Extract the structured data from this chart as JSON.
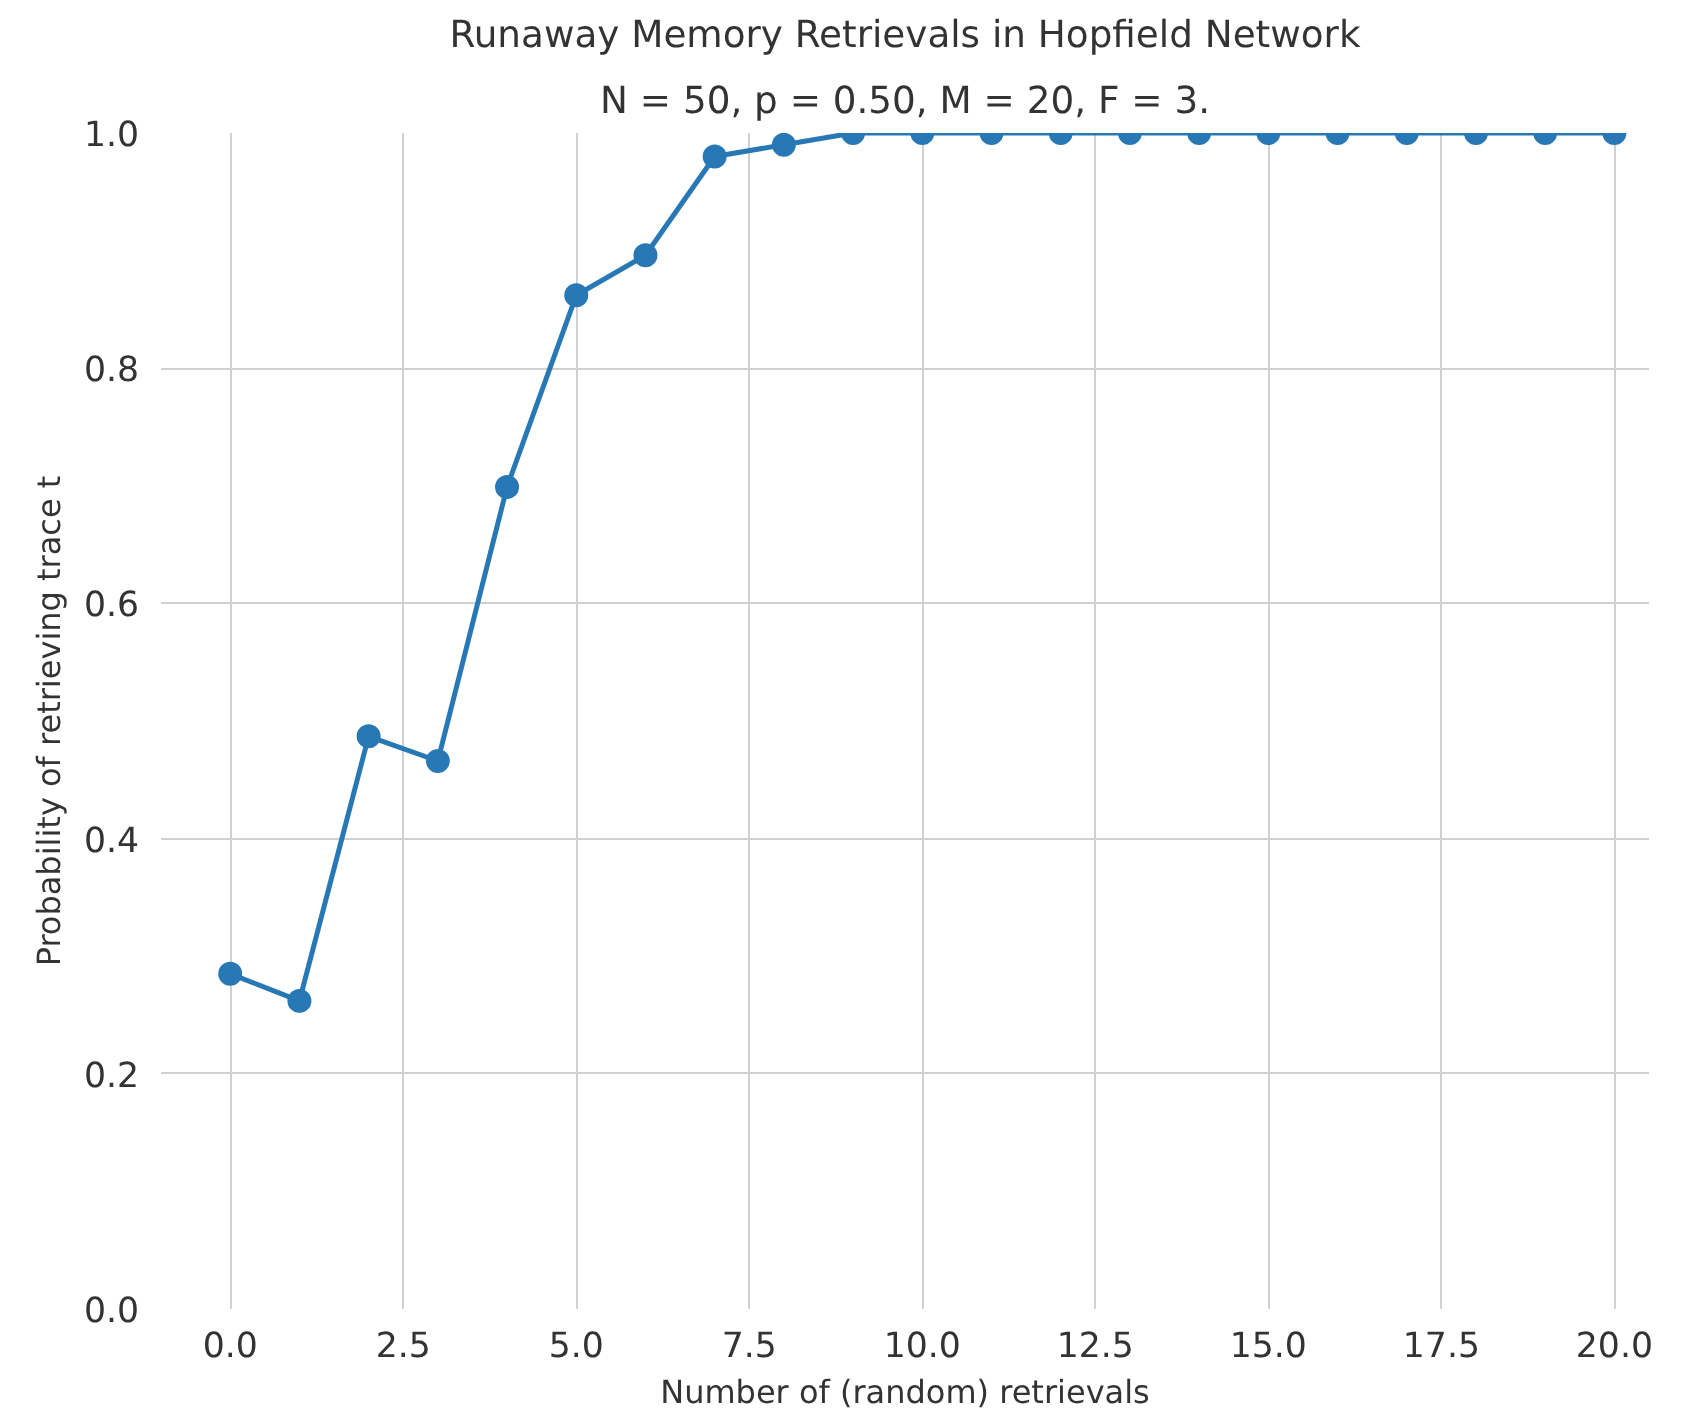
{
  "chart_data": {
    "type": "line",
    "title": "Runaway Memory Retrievals in Hopfield Network",
    "subtitle": "N = 50, p = 0.50, M = 20, F = 3.",
    "xlabel": "Number of (random) retrievals",
    "ylabel": "Probability of retrieving trace t",
    "x": [
      0,
      1,
      2,
      3,
      4,
      5,
      6,
      7,
      8,
      9,
      10,
      11,
      12,
      13,
      14,
      15,
      16,
      17,
      18,
      19,
      20
    ],
    "series": [
      {
        "color": "#2878b5",
        "values": [
          0.285,
          0.262,
          0.487,
          0.466,
          0.699,
          0.862,
          0.896,
          0.98,
          0.99,
          1.0,
          1.0,
          1.0,
          1.0,
          1.0,
          1.0,
          1.0,
          1.0,
          1.0,
          1.0,
          1.0,
          1.0
        ]
      }
    ],
    "xlim": [
      -1,
      20.5
    ],
    "ylim": [
      0,
      1
    ],
    "xticks": [
      {
        "value": 0,
        "label": "0.0"
      },
      {
        "value": 2.5,
        "label": "2.5"
      },
      {
        "value": 5,
        "label": "5.0"
      },
      {
        "value": 7.5,
        "label": "7.5"
      },
      {
        "value": 10,
        "label": "10.0"
      },
      {
        "value": 12.5,
        "label": "12.5"
      },
      {
        "value": 15,
        "label": "15.0"
      },
      {
        "value": 17.5,
        "label": "17.5"
      },
      {
        "value": 20,
        "label": "20.0"
      }
    ],
    "yticks": [
      {
        "value": 0,
        "label": "0.0"
      },
      {
        "value": 0.2,
        "label": "0.2"
      },
      {
        "value": 0.4,
        "label": "0.4"
      },
      {
        "value": 0.6,
        "label": "0.6"
      },
      {
        "value": 0.8,
        "label": "0.8"
      },
      {
        "value": 1,
        "label": "1.0"
      }
    ],
    "grid": true,
    "marker": "circle",
    "line_style": "solid"
  }
}
